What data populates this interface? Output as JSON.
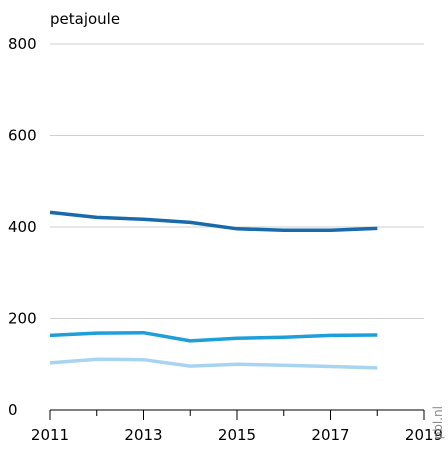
{
  "chart_data": {
    "type": "line",
    "title": "",
    "xlabel": "",
    "ylabel": "petajoule",
    "credit": "pbl.nl",
    "xlim": [
      2011,
      2019
    ],
    "ylim": [
      0,
      800
    ],
    "x_ticks": [
      2011,
      2013,
      2015,
      2017,
      2019
    ],
    "x_minor_ticks": [
      2012,
      2014,
      2016,
      2018
    ],
    "y_ticks": [
      0,
      200,
      400,
      600,
      800
    ],
    "grid": true,
    "x": [
      2011,
      2012,
      2013,
      2014,
      2015,
      2016,
      2017,
      2018
    ],
    "series": [
      {
        "color": "#1a6aab",
        "values": [
          432,
          421,
          417,
          410,
          396,
          393,
          393,
          397
        ]
      },
      {
        "color": "#1f9fd9",
        "values": [
          163,
          168,
          169,
          151,
          157,
          159,
          163,
          164
        ]
      },
      {
        "color": "#a9d4f1",
        "values": [
          103,
          111,
          110,
          96,
          100,
          98,
          95,
          92
        ]
      }
    ]
  }
}
